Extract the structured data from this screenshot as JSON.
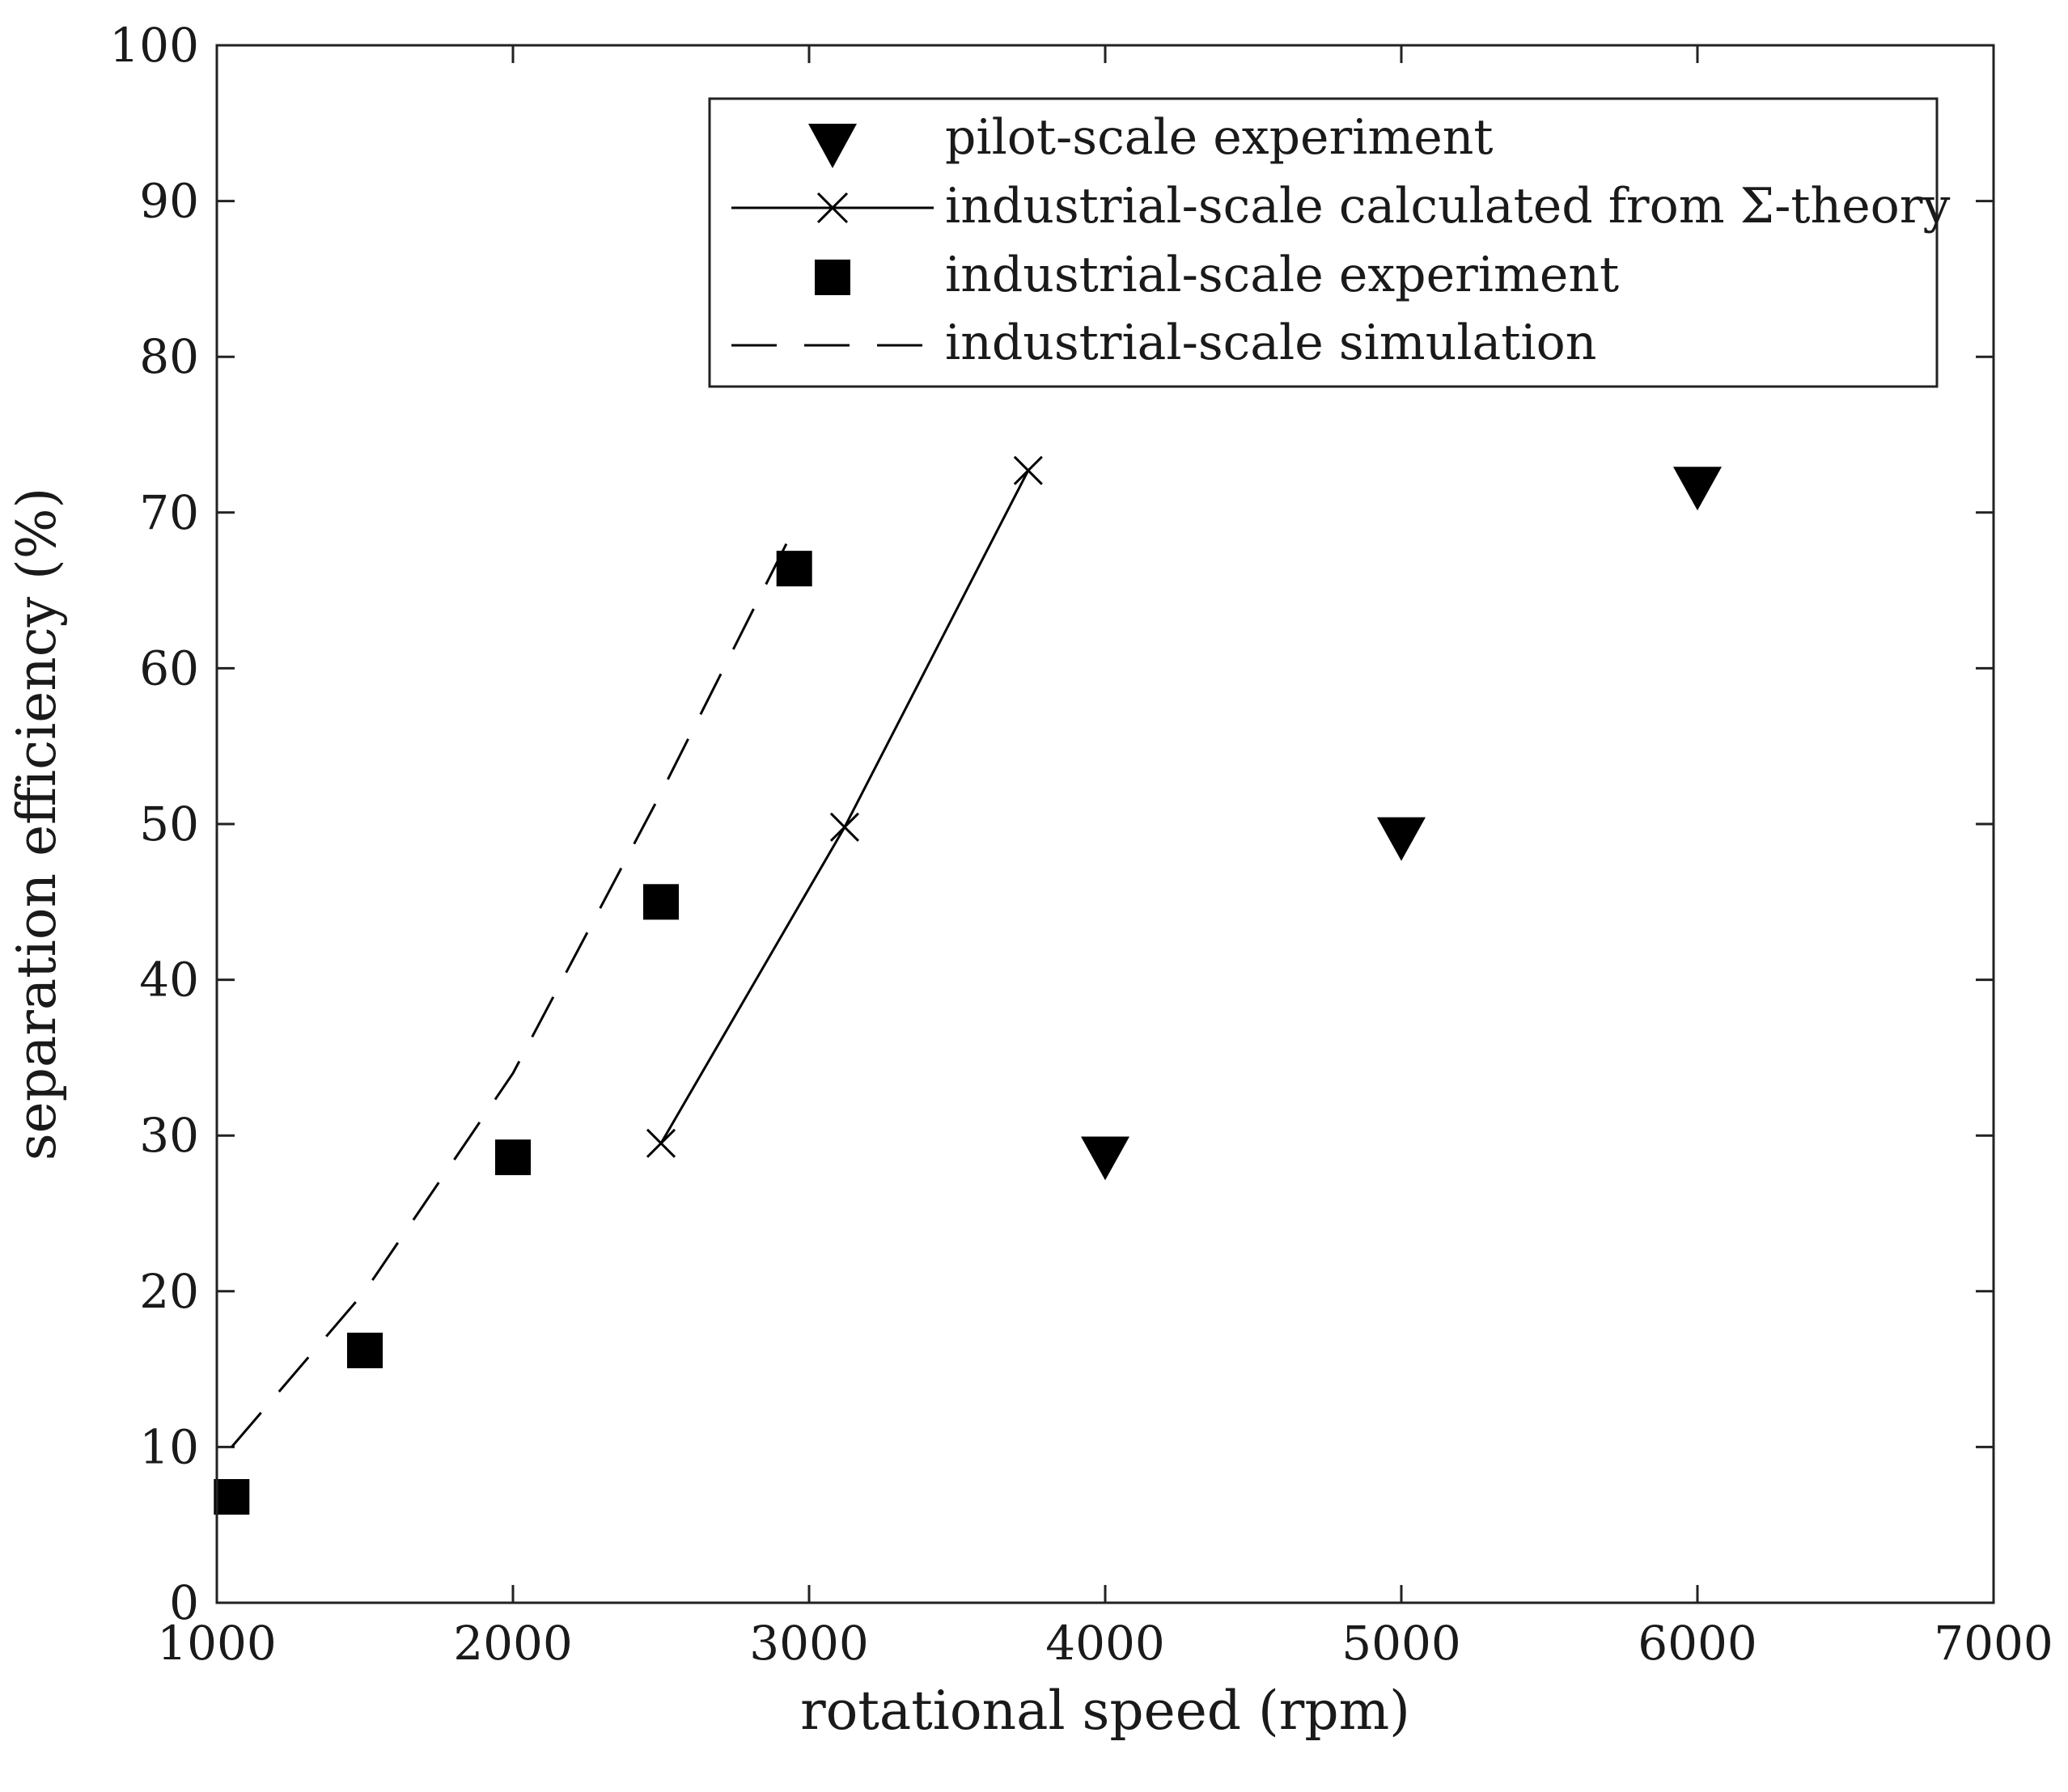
{
  "chart_data": {
    "type": "line",
    "xlabel": "rotational speed (rpm)",
    "ylabel": "separation efficiency (%)",
    "xlim": [
      1000,
      7000
    ],
    "ylim": [
      0,
      100
    ],
    "x_ticks": [
      1000,
      2000,
      3000,
      4000,
      5000,
      6000,
      7000
    ],
    "y_ticks": [
      0,
      10,
      20,
      30,
      40,
      50,
      60,
      70,
      80,
      90,
      100
    ],
    "legend_position": "top-right",
    "grid": false,
    "series": [
      {
        "name": "pilot-scale experiment",
        "marker": "triangle-down",
        "line": "none",
        "x": [
          4000,
          5000,
          6000
        ],
        "y": [
          29,
          49.5,
          72
        ]
      },
      {
        "name": "industrial-scale calculated from Σ-theory",
        "marker": "x",
        "line": "solid",
        "x": [
          2500,
          3120,
          3740
        ],
        "y": [
          29.5,
          49.8,
          72.7
        ]
      },
      {
        "name": "industrial-scale experiment",
        "marker": "square",
        "line": "none",
        "x": [
          1050,
          1500,
          2000,
          2500,
          2950
        ],
        "y": [
          6.8,
          16.2,
          28.6,
          45.0,
          66.4
        ]
      },
      {
        "name": "industrial-scale simulation",
        "marker": "none",
        "line": "dashed",
        "x": [
          1050,
          1500,
          2000,
          2500,
          2950
        ],
        "y": [
          10,
          20,
          34,
          52,
          69
        ]
      }
    ]
  }
}
